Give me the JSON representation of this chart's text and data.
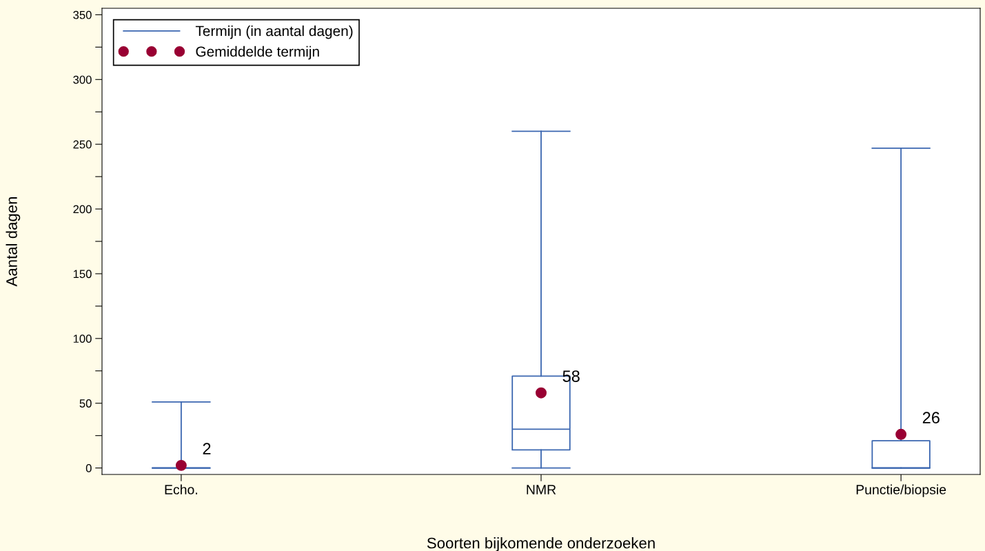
{
  "chart_data": {
    "type": "box",
    "xlabel": "Soorten bijkomende onderzoeken",
    "ylabel": "Aantal dagen",
    "categories": [
      "Echo.",
      "NMR",
      "Punctie/biopsie"
    ],
    "series": [
      {
        "name": "Termijn (in aantal dagen)",
        "color": "#3a66b0",
        "boxes": [
          {
            "low": 0,
            "q1": 0,
            "median": 0,
            "q3": 0,
            "high": 51
          },
          {
            "low": 0,
            "q1": 14,
            "median": 30,
            "q3": 71,
            "high": 260
          },
          {
            "low": 0,
            "q1": 0,
            "median": 0,
            "q3": 21,
            "high": 247
          }
        ]
      },
      {
        "type": "scatter",
        "name": "Gemiddelde termijn",
        "color": "#990033",
        "x": [
          "Echo.",
          "NMR",
          "Punctie/biopsie"
        ],
        "values": [
          2,
          58,
          26
        ]
      }
    ],
    "data_labels": true,
    "marker": "circle",
    "ylim": [
      -5,
      355
    ],
    "yticks": [
      0,
      {
        "value": 25,
        "label": null
      },
      50,
      {
        "value": 75,
        "label": null
      },
      100,
      {
        "value": 125,
        "label": null
      },
      150,
      {
        "value": 175,
        "label": null
      },
      200,
      {
        "value": 225,
        "label": null
      },
      250,
      {
        "value": 275,
        "label": null
      },
      300,
      {
        "value": 325,
        "label": null
      },
      350
    ],
    "grid": false,
    "legend": "top left"
  }
}
